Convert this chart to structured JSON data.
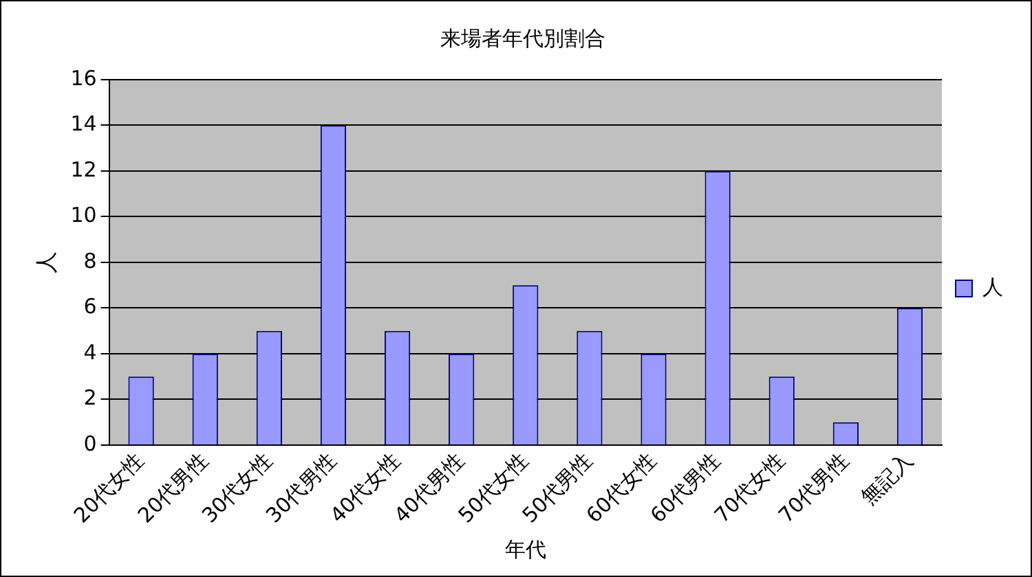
{
  "chart_data": {
    "type": "bar",
    "title": "来場者年代別割合",
    "xlabel": "年代",
    "ylabel": "人",
    "categories": [
      "20代女性",
      "20代男性",
      "30代女性",
      "30代男性",
      "40代女性",
      "40代男性",
      "50代女性",
      "50代男性",
      "60代女性",
      "60代男性",
      "70代女性",
      "70代男性",
      "無記入"
    ],
    "series": [
      {
        "name": "人",
        "color": "#9999ff",
        "values": [
          3,
          4,
          5,
          14,
          5,
          4,
          7,
          5,
          4,
          12,
          3,
          1,
          6
        ]
      }
    ],
    "ylim": [
      0,
      16
    ],
    "yticks": [
      0,
      2,
      4,
      6,
      8,
      10,
      12,
      14,
      16
    ],
    "grid": "y",
    "legend": "right"
  }
}
